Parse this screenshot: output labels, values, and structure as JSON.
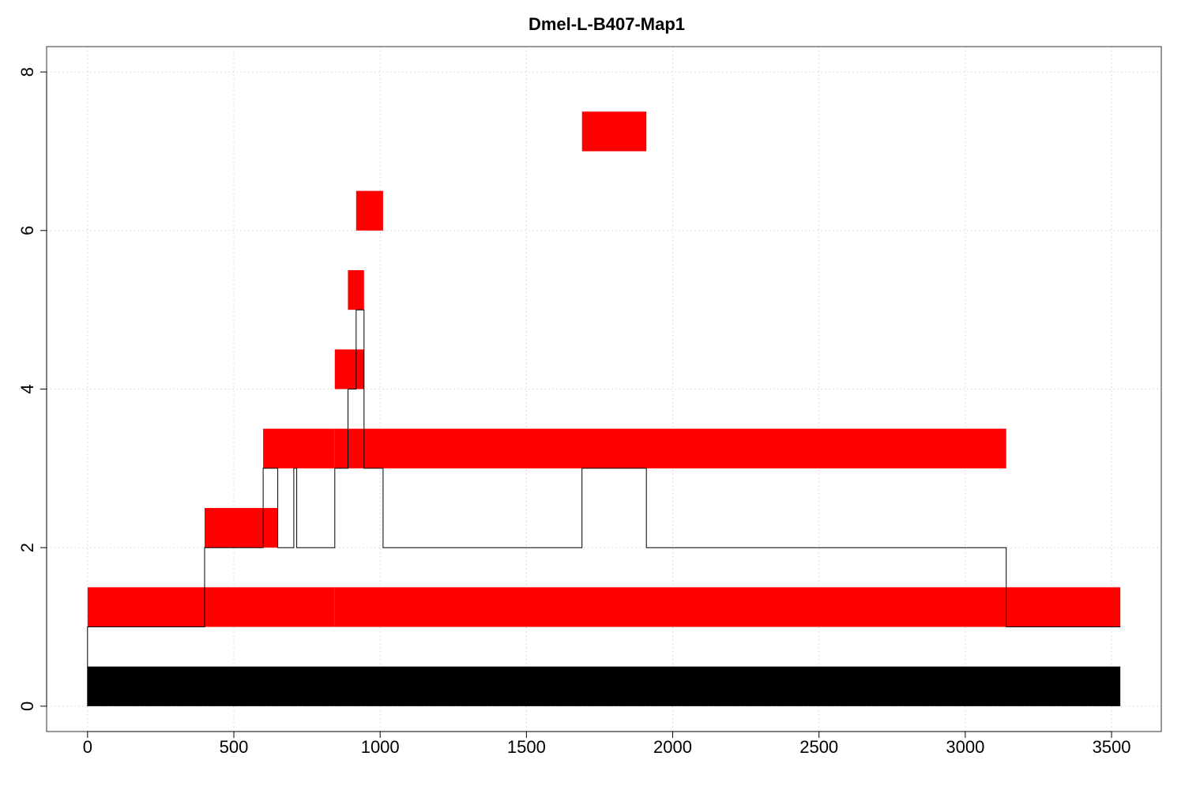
{
  "chart_data": {
    "type": "bar",
    "title": "Dmel-L-B407-Map1",
    "xlabel": "",
    "ylabel": "",
    "xlim": [
      -140,
      3670
    ],
    "ylim": [
      -0.32,
      8.32
    ],
    "x_ticks": [
      0,
      500,
      1000,
      1500,
      2000,
      2500,
      3000,
      3500
    ],
    "x_tick_labels": [
      "0",
      "500",
      "1000",
      "1500",
      "2000",
      "2500",
      "3000",
      "3500"
    ],
    "y_ticks": [
      0,
      2,
      4,
      6,
      8
    ],
    "y_tick_labels": [
      "0",
      "2",
      "4",
      "6",
      "8"
    ],
    "grid": true,
    "legend": "none",
    "colors": {
      "reference": "#000000",
      "segment": "#ff0000",
      "coverage_line": "#000000"
    },
    "reference_bar": {
      "start": 0,
      "end": 3530,
      "y0": 0,
      "y1": 0.5
    },
    "segments": [
      {
        "start": 0,
        "end": 400,
        "level": 1
      },
      {
        "start": 400,
        "end": 845,
        "level": 1
      },
      {
        "start": 845,
        "end": 3140,
        "level": 1
      },
      {
        "start": 3140,
        "end": 3530,
        "level": 1
      },
      {
        "start": 400,
        "end": 650,
        "level": 2
      },
      {
        "start": 600,
        "end": 845,
        "level": 3
      },
      {
        "start": 845,
        "end": 945,
        "level": 3
      },
      {
        "start": 945,
        "end": 3140,
        "level": 3
      },
      {
        "start": 845,
        "end": 945,
        "level": 4
      },
      {
        "start": 890,
        "end": 945,
        "level": 5
      },
      {
        "start": 918,
        "end": 1010,
        "level": 6
      },
      {
        "start": 1690,
        "end": 1910,
        "level": 7
      }
    ],
    "coverage_line": {
      "x": [
        0,
        0,
        400,
        400,
        600,
        600,
        650,
        650,
        705,
        705,
        715,
        715,
        845,
        845,
        890,
        890,
        918,
        918,
        945,
        945,
        1010,
        1010,
        1690,
        1690,
        1910,
        1910,
        3140,
        3140,
        3530
      ],
      "y": [
        0,
        1,
        1,
        2,
        2,
        3,
        3,
        2,
        2,
        3,
        3,
        2,
        2,
        3,
        3,
        4,
        4,
        5,
        5,
        3,
        3,
        2,
        2,
        3,
        3,
        2,
        2,
        1,
        1
      ]
    }
  }
}
